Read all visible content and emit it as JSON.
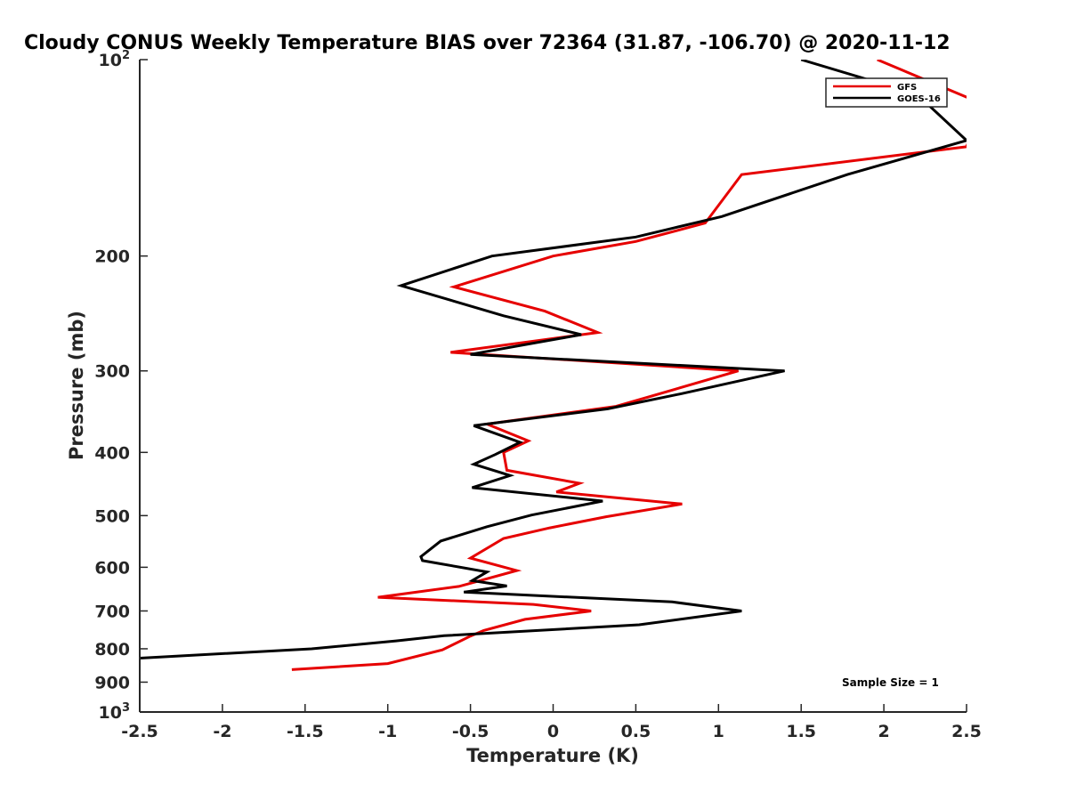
{
  "chart_data": {
    "type": "line",
    "title": "Cloudy CONUS Weekly Temperature BIAS over 72364 (31.87, -106.70) @ 2020-11-12",
    "xlabel": "Temperature (K)",
    "ylabel": "Pressure (mb)",
    "xlim": [
      -2.5,
      2.5
    ],
    "ylim": [
      100,
      1000
    ],
    "y_scale": "log",
    "y_reversed": true,
    "grid": false,
    "legend_position": "top-right",
    "x_ticks": [
      -2.5,
      -2,
      -1.5,
      -1,
      -0.5,
      0,
      0.5,
      1,
      1.5,
      2,
      2.5
    ],
    "x_tick_labels": [
      "-2.5",
      "-2",
      "-1.5",
      "-1",
      "-0.5",
      "0",
      "0.5",
      "1",
      "1.5",
      "2",
      "2.5"
    ],
    "y_ticks": [
      {
        "value": 200,
        "label": "200"
      },
      {
        "value": 300,
        "label": "300"
      },
      {
        "value": 400,
        "label": "400"
      },
      {
        "value": 500,
        "label": "500"
      },
      {
        "value": 600,
        "label": "600"
      },
      {
        "value": 700,
        "label": "700"
      },
      {
        "value": 800,
        "label": "800"
      },
      {
        "value": 900,
        "label": "900"
      }
    ],
    "y_decade_ticks": [
      {
        "value": 100,
        "base": "10",
        "exp": "2"
      },
      {
        "value": 1000,
        "base": "10",
        "exp": "3"
      }
    ],
    "series": [
      {
        "name": "GFS",
        "color": "#e60000",
        "points": [
          [
            1.96,
            100
          ],
          [
            2.6,
            117
          ],
          [
            2.5,
            136
          ],
          [
            1.14,
            150
          ],
          [
            0.92,
            178
          ],
          [
            0.5,
            190
          ],
          [
            0,
            200
          ],
          [
            -0.6,
            223
          ],
          [
            -0.05,
            243
          ],
          [
            0.27,
            262
          ],
          [
            -0.62,
            281
          ],
          [
            1.12,
            300
          ],
          [
            0.72,
            321
          ],
          [
            0.38,
            340
          ],
          [
            -0.4,
            362
          ],
          [
            -0.15,
            384
          ],
          [
            -0.3,
            400
          ],
          [
            -0.28,
            426
          ],
          [
            0.16,
            446
          ],
          [
            0.02,
            460
          ],
          [
            0.78,
            480
          ],
          [
            0.32,
            502
          ],
          [
            -0.02,
            522
          ],
          [
            -0.3,
            542
          ],
          [
            -0.5,
            581
          ],
          [
            -0.22,
            607
          ],
          [
            -0.57,
            642
          ],
          [
            -1.06,
            667
          ],
          [
            -0.12,
            684
          ],
          [
            0.23,
            700
          ],
          [
            -0.17,
            721
          ],
          [
            -0.42,
            750
          ],
          [
            -0.5,
            765
          ],
          [
            -0.67,
            803
          ],
          [
            -1.0,
            843
          ],
          [
            -1.58,
            861
          ]
        ]
      },
      {
        "name": "GOES-16",
        "color": "#000000",
        "points": [
          [
            1.5,
            100
          ],
          [
            2.2,
            113
          ],
          [
            2.5,
            133
          ],
          [
            1.78,
            150
          ],
          [
            1.02,
            174
          ],
          [
            0.5,
            187
          ],
          [
            -0.37,
            200
          ],
          [
            -0.92,
            222
          ],
          [
            -0.3,
            247
          ],
          [
            0.17,
            264
          ],
          [
            -0.5,
            283
          ],
          [
            1.4,
            300
          ],
          [
            0.78,
            325
          ],
          [
            0.33,
            343
          ],
          [
            -0.48,
            364
          ],
          [
            -0.2,
            386
          ],
          [
            -0.35,
            403
          ],
          [
            -0.48,
            417
          ],
          [
            -0.26,
            434
          ],
          [
            -0.49,
            453
          ],
          [
            0.3,
            475
          ],
          [
            -0.13,
            499
          ],
          [
            -0.4,
            520
          ],
          [
            -0.68,
            547
          ],
          [
            -0.8,
            578
          ],
          [
            -0.79,
            586
          ],
          [
            -0.4,
            610
          ],
          [
            -0.49,
            629
          ],
          [
            -0.28,
            641
          ],
          [
            -0.54,
            655
          ],
          [
            0.72,
            678
          ],
          [
            1.14,
            700
          ],
          [
            0.52,
            735
          ],
          [
            -0.66,
            764
          ],
          [
            -0.95,
            778
          ],
          [
            -1.46,
            800
          ],
          [
            -2.58,
            829
          ]
        ]
      }
    ],
    "annotations": [
      "Sample Size = 1"
    ]
  }
}
